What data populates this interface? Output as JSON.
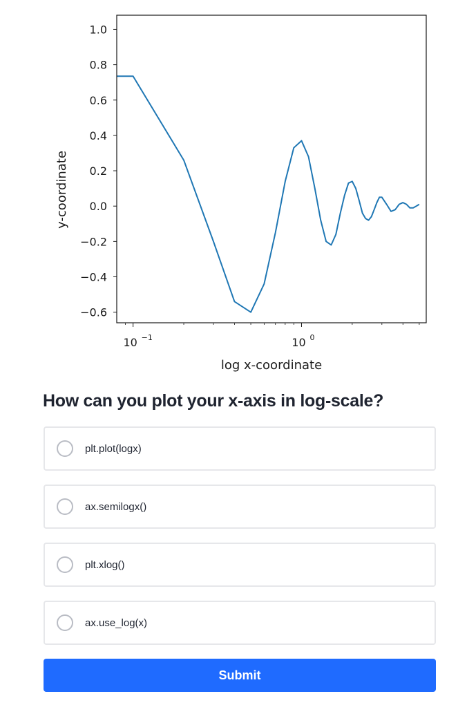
{
  "chart_data": {
    "type": "line",
    "xlabel": "log x-coordinate",
    "ylabel": "y-coordinate",
    "xscale": "log",
    "xlim": [
      0.08,
      5.5
    ],
    "ylim": [
      -0.66,
      1.08
    ],
    "grid": false,
    "xticks": [
      {
        "value": 0.1,
        "base": "10",
        "exp": "−1"
      },
      {
        "value": 1,
        "base": "10",
        "exp": "0"
      }
    ],
    "yticks": [
      {
        "value": 1.0,
        "label": "1.0"
      },
      {
        "value": 0.8,
        "label": "0.8"
      },
      {
        "value": 0.6,
        "label": "0.6"
      },
      {
        "value": 0.4,
        "label": "0.4"
      },
      {
        "value": 0.2,
        "label": "0.2"
      },
      {
        "value": 0.0,
        "label": "0.0"
      },
      {
        "value": -0.2,
        "label": "−0.2"
      },
      {
        "value": -0.4,
        "label": "−0.4"
      },
      {
        "value": -0.6,
        "label": "−0.6"
      }
    ],
    "series": [
      {
        "color": "#1f77b4",
        "x": [
          0.08,
          0.1,
          0.2,
          0.3,
          0.4,
          0.5,
          0.6,
          0.7,
          0.8,
          0.9,
          1.0,
          1.1,
          1.2,
          1.3,
          1.4,
          1.5,
          1.6,
          1.7,
          1.8,
          1.9,
          2.0,
          2.1,
          2.2,
          2.3,
          2.4,
          2.5,
          2.6,
          2.7,
          2.8,
          2.9,
          3.0,
          3.2,
          3.4,
          3.6,
          3.8,
          4.0,
          4.2,
          4.4,
          4.6,
          4.8,
          5.0
        ],
        "y": [
          0.735,
          0.735,
          0.26,
          -0.2,
          -0.54,
          -0.6,
          -0.44,
          -0.15,
          0.14,
          0.33,
          0.37,
          0.28,
          0.1,
          -0.08,
          -0.2,
          -0.22,
          -0.16,
          -0.04,
          0.06,
          0.13,
          0.14,
          0.1,
          0.03,
          -0.04,
          -0.07,
          -0.08,
          -0.06,
          -0.02,
          0.02,
          0.05,
          0.05,
          0.01,
          -0.03,
          -0.02,
          0.01,
          0.02,
          0.01,
          -0.01,
          -0.01,
          0.0,
          0.01
        ]
      }
    ]
  },
  "quiz": {
    "question": "How can you plot your x-axis in log-scale?",
    "options": [
      {
        "label": "plt.plot(logx)"
      },
      {
        "label": "ax.semilogx()"
      },
      {
        "label": "plt.xlog()"
      },
      {
        "label": "ax.use_log(x)"
      }
    ],
    "submit_label": "Submit",
    "accent_color": "#1f6bff"
  }
}
